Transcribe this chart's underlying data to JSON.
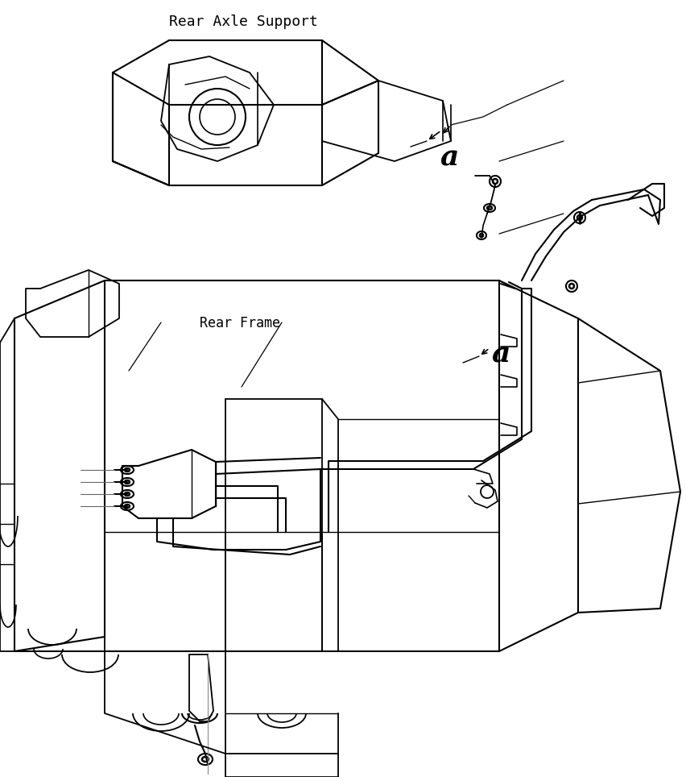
{
  "bg_color": "#ffffff",
  "line_color": "#000000",
  "title_rear_axle": "Rear Axle Support",
  "title_rear_frame": "Rear Frame",
  "label_a": "a",
  "fig_width": 8.53,
  "fig_height": 9.64,
  "dpi": 100
}
